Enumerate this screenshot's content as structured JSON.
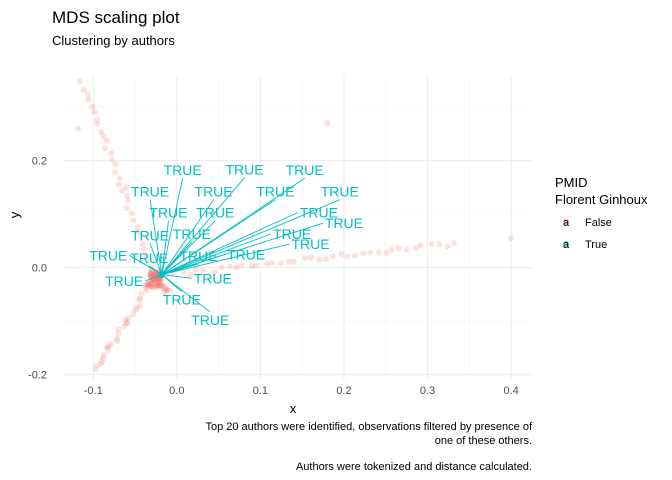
{
  "chart_data": {
    "type": "scatter",
    "title": "MDS scaling plot",
    "subtitle": "Clustering by authors",
    "xlabel": "x",
    "ylabel": "y",
    "xlim": [
      -0.135,
      0.425
    ],
    "ylim": [
      -0.21,
      0.36
    ],
    "x_ticks": [
      -0.1,
      0.0,
      0.1,
      0.2,
      0.3,
      0.4
    ],
    "x_tick_labels": [
      "-0.1",
      "0.0",
      "0.1",
      "0.2",
      "0.3",
      "0.4"
    ],
    "y_ticks": [
      -0.2,
      0.0,
      0.2
    ],
    "y_tick_labels": [
      "-0.2",
      "0.0",
      "0.2"
    ],
    "grid": true,
    "legend": {
      "title_line1": "PMID",
      "title_line2": "Florent Ginhoux",
      "placement": "right",
      "entries": [
        {
          "key": "a",
          "label": "False",
          "color": "#F8766D"
        },
        {
          "key": "a",
          "label": "True",
          "color": "#00BFC4"
        }
      ]
    },
    "caption_lines": [
      "Top 20 authors were identified, observations filtered by presence of",
      "one of these others.",
      "",
      "Authors were tokenized and distance calculated."
    ],
    "colors": {
      "false": "#F8766D",
      "true": "#00BFC4"
    },
    "label_text": "TRUE",
    "true_point": [
      -0.018,
      -0.013
    ],
    "false_arms": [
      {
        "from": [
          -0.113,
          0.345
        ],
        "to": [
          -0.025,
          -0.02
        ],
        "n": 34
      },
      {
        "from": [
          -0.098,
          -0.19
        ],
        "to": [
          -0.03,
          -0.03
        ],
        "n": 30
      },
      {
        "from": [
          -0.02,
          -0.015
        ],
        "to": [
          0.33,
          0.045
        ],
        "n": 40
      },
      {
        "from": [
          -0.03,
          -0.01
        ],
        "to": [
          -0.01,
          -0.045
        ],
        "n": 25
      }
    ],
    "false_extra": [
      [
        0.4,
        0.055
      ],
      [
        0.18,
        0.27
      ],
      [
        -0.118,
        0.26
      ],
      [
        -0.06,
        0.15
      ]
    ],
    "labels": [
      {
        "x": 0.007,
        "y": 0.182
      },
      {
        "x": 0.081,
        "y": 0.183
      },
      {
        "x": 0.153,
        "y": 0.182
      },
      {
        "x": -0.032,
        "y": 0.142
      },
      {
        "x": 0.044,
        "y": 0.142
      },
      {
        "x": 0.118,
        "y": 0.142
      },
      {
        "x": 0.195,
        "y": 0.142
      },
      {
        "x": -0.01,
        "y": 0.103
      },
      {
        "x": 0.046,
        "y": 0.103
      },
      {
        "x": 0.17,
        "y": 0.103
      },
      {
        "x": 0.2,
        "y": 0.083
      },
      {
        "x": -0.032,
        "y": 0.06
      },
      {
        "x": 0.018,
        "y": 0.063
      },
      {
        "x": 0.138,
        "y": 0.063
      },
      {
        "x": -0.082,
        "y": 0.023
      },
      {
        "x": -0.033,
        "y": 0.018
      },
      {
        "x": 0.026,
        "y": 0.022
      },
      {
        "x": 0.083,
        "y": 0.025
      },
      {
        "x": 0.16,
        "y": 0.044
      },
      {
        "x": -0.063,
        "y": -0.025
      },
      {
        "x": 0.043,
        "y": -0.02
      },
      {
        "x": 0.006,
        "y": -0.06
      },
      {
        "x": 0.04,
        "y": -0.098
      }
    ]
  }
}
